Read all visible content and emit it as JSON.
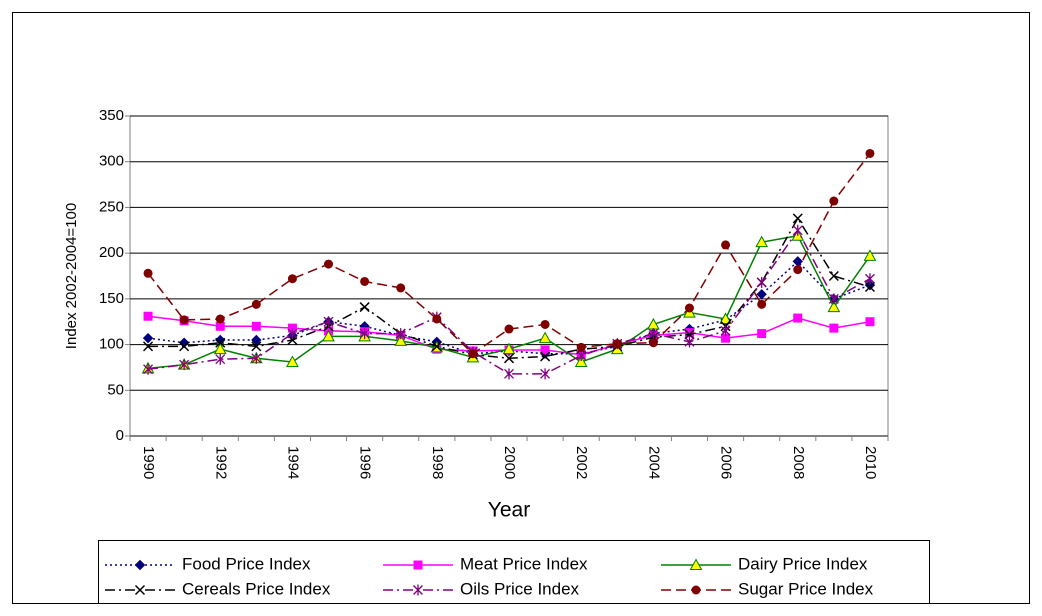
{
  "chart_data": {
    "type": "line",
    "x_label": "Year",
    "y_label": "Index 2002-2004=100",
    "categories": [
      "1990",
      null,
      "1992",
      null,
      "1994",
      null,
      "1996",
      null,
      "1998",
      null,
      "2000",
      null,
      "2002",
      null,
      "2004",
      null,
      "2006",
      null,
      "2008",
      null,
      "2010"
    ],
    "ylim": [
      0,
      350
    ],
    "yticks": [
      0,
      50,
      100,
      150,
      200,
      250,
      300,
      350
    ],
    "grid": true,
    "series": [
      {
        "name": "Food Price Index",
        "color": "#000080",
        "marker": "diamond",
        "line_style": "dotted",
        "values": [
          107,
          102,
          105,
          105,
          110,
          125,
          120,
          110,
          103,
          90,
          93,
          90,
          90,
          98,
          112,
          117,
          127,
          155,
          191,
          150,
          165
        ]
      },
      {
        "name": "Meat Price Index",
        "color": "#ff00ff",
        "marker": "square",
        "line_style": "solid",
        "values": [
          131,
          126,
          120,
          120,
          118,
          115,
          114,
          110,
          95,
          93,
          94,
          94,
          89,
          100,
          110,
          113,
          107,
          112,
          129,
          118,
          125
        ]
      },
      {
        "name": "Dairy Price Index",
        "color": "#008000",
        "marker": "triangle",
        "line_style": "solid",
        "values": [
          74,
          78,
          95,
          85,
          81,
          109,
          109,
          104,
          97,
          86,
          95,
          107,
          81,
          95,
          122,
          135,
          128,
          212,
          219,
          141,
          197
        ]
      },
      {
        "name": "Cereals Price Index",
        "color": "#000000",
        "marker": "x",
        "line_style": "dashdot",
        "values": [
          98,
          98,
          102,
          98,
          105,
          120,
          141,
          112,
          98,
          89,
          85,
          87,
          95,
          98,
          108,
          111,
          120,
          168,
          238,
          175,
          163
        ]
      },
      {
        "name": "Oils Price Index",
        "color": "#800080",
        "marker": "star",
        "line_style": "dashdot",
        "values": [
          73,
          78,
          84,
          85,
          112,
          125,
          112,
          112,
          130,
          92,
          68,
          68,
          88,
          101,
          112,
          103,
          115,
          168,
          225,
          150,
          172
        ]
      },
      {
        "name": "Sugar Price Index",
        "color": "#800000",
        "marker": "circle",
        "line_style": "dashed",
        "values": [
          178,
          127,
          128,
          144,
          172,
          188,
          169,
          162,
          128,
          90,
          117,
          122,
          97,
          101,
          102,
          140,
          209,
          144,
          182,
          257,
          309
        ]
      }
    ]
  }
}
